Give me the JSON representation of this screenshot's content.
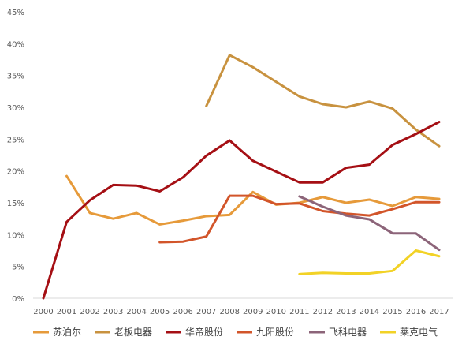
{
  "chart_data": {
    "type": "line",
    "title": "",
    "xlabel": "",
    "ylabel": "",
    "categories": [
      "2000",
      "2001",
      "2002",
      "2003",
      "2004",
      "2005",
      "2006",
      "2007",
      "2008",
      "2009",
      "2010",
      "2011",
      "2012",
      "2013",
      "2014",
      "2015",
      "2016",
      "2017"
    ],
    "y_ticks": [
      "0%",
      "5%",
      "10%",
      "15%",
      "20%",
      "25%",
      "30%",
      "35%",
      "40%",
      "45%"
    ],
    "ylim": [
      0,
      45
    ],
    "y_unit": "%",
    "grid": false,
    "legend_position": "bottom",
    "series": [
      {
        "name": "苏泊尔",
        "color": "#E69A3A",
        "values": [
          null,
          19.2,
          13.4,
          12.5,
          13.4,
          11.6,
          12.2,
          12.9,
          13.1,
          16.7,
          14.7,
          15.0,
          15.9,
          15.0,
          15.5,
          14.5,
          15.9,
          15.6
        ]
      },
      {
        "name": "老板电器",
        "color": "#C8923F",
        "values": [
          null,
          null,
          null,
          null,
          null,
          null,
          null,
          30.2,
          38.2,
          36.3,
          34.0,
          31.7,
          30.5,
          30.0,
          30.9,
          29.8,
          26.5,
          23.9
        ]
      },
      {
        "name": "华帝股份",
        "color": "#A50F14",
        "values": [
          0.0,
          12.0,
          15.4,
          17.8,
          17.7,
          16.8,
          19.0,
          22.4,
          24.8,
          21.6,
          19.9,
          18.2,
          18.2,
          20.5,
          21.0,
          24.1,
          25.8,
          27.7
        ]
      },
      {
        "name": "九阳股份",
        "color": "#D2552A",
        "values": [
          null,
          null,
          null,
          null,
          null,
          8.8,
          8.9,
          9.7,
          16.1,
          16.1,
          14.8,
          14.9,
          13.7,
          13.3,
          13.0,
          14.0,
          15.1,
          15.1
        ]
      },
      {
        "name": "飞科电器",
        "color": "#8C6479",
        "values": [
          null,
          null,
          null,
          null,
          null,
          null,
          null,
          null,
          null,
          null,
          null,
          16.0,
          14.4,
          13.0,
          12.4,
          10.2,
          10.2,
          7.6
        ]
      },
      {
        "name": "莱克电气",
        "color": "#F2D226",
        "values": [
          null,
          null,
          null,
          null,
          null,
          null,
          null,
          null,
          null,
          null,
          null,
          3.8,
          4.0,
          3.9,
          3.9,
          4.3,
          7.5,
          6.6
        ]
      }
    ]
  }
}
